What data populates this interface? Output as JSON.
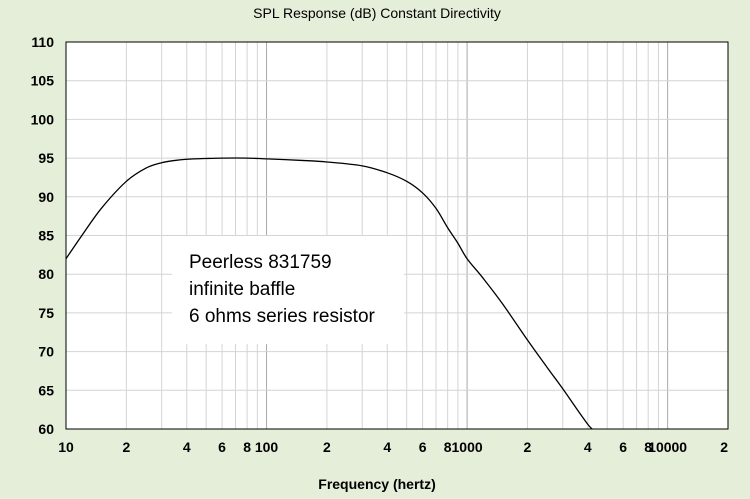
{
  "chart_data": {
    "type": "line",
    "title": "SPL Response (dB)   Constant Directivity",
    "xlabel": "Frequency (hertz)",
    "ylabel": "",
    "x_scale": "log",
    "xlim": [
      10,
      20000
    ],
    "ylim": [
      60,
      110
    ],
    "grid": true,
    "y_ticks": [
      60,
      65,
      70,
      75,
      80,
      85,
      90,
      95,
      100,
      105,
      110
    ],
    "y_tick_labels": [
      "60",
      "65",
      "70",
      "75",
      "80",
      "85",
      "90",
      "95",
      "100",
      "105",
      "110"
    ],
    "x_ticks": [
      {
        "value": 10,
        "label": "10"
      },
      {
        "value": 20,
        "label": "2"
      },
      {
        "value": 40,
        "label": "4"
      },
      {
        "value": 60,
        "label": "6"
      },
      {
        "value": 80,
        "label": "8"
      },
      {
        "value": 100,
        "label": "100"
      },
      {
        "value": 200,
        "label": "2"
      },
      {
        "value": 400,
        "label": "4"
      },
      {
        "value": 600,
        "label": "6"
      },
      {
        "value": 800,
        "label": "8"
      },
      {
        "value": 1000,
        "label": "1000"
      },
      {
        "value": 2000,
        "label": "2"
      },
      {
        "value": 4000,
        "label": "4"
      },
      {
        "value": 6000,
        "label": "6"
      },
      {
        "value": 8000,
        "label": "8"
      },
      {
        "value": 10000,
        "label": "10000"
      },
      {
        "value": 20000,
        "label": "2"
      }
    ],
    "annotation_lines": [
      "Peerless  831759",
      "infinite baffle",
      "6 ohms series resistor"
    ],
    "series": [
      {
        "color": "#000000",
        "x": [
          10,
          12,
          15,
          20,
          25,
          30,
          35,
          40,
          50,
          60,
          80,
          100,
          150,
          200,
          300,
          400,
          500,
          600,
          700,
          800,
          900,
          1000,
          1200,
          1500,
          2000,
          2500,
          3000,
          3500,
          4000,
          4200
        ],
        "y": [
          82,
          85,
          88.5,
          92,
          93.7,
          94.4,
          94.7,
          94.85,
          94.95,
          95,
          95,
          94.9,
          94.7,
          94.5,
          94,
          93.1,
          92,
          90.5,
          88.5,
          86,
          84,
          82,
          79.5,
          76.2,
          71.5,
          68,
          65.2,
          62.7,
          60.6,
          60
        ]
      }
    ]
  },
  "colors": {
    "background": "#e5eed9",
    "plot_area": "#ffffff",
    "grid_minor": "#d4d4d4",
    "grid_major": "#a8a8a8",
    "line": "#000000"
  }
}
